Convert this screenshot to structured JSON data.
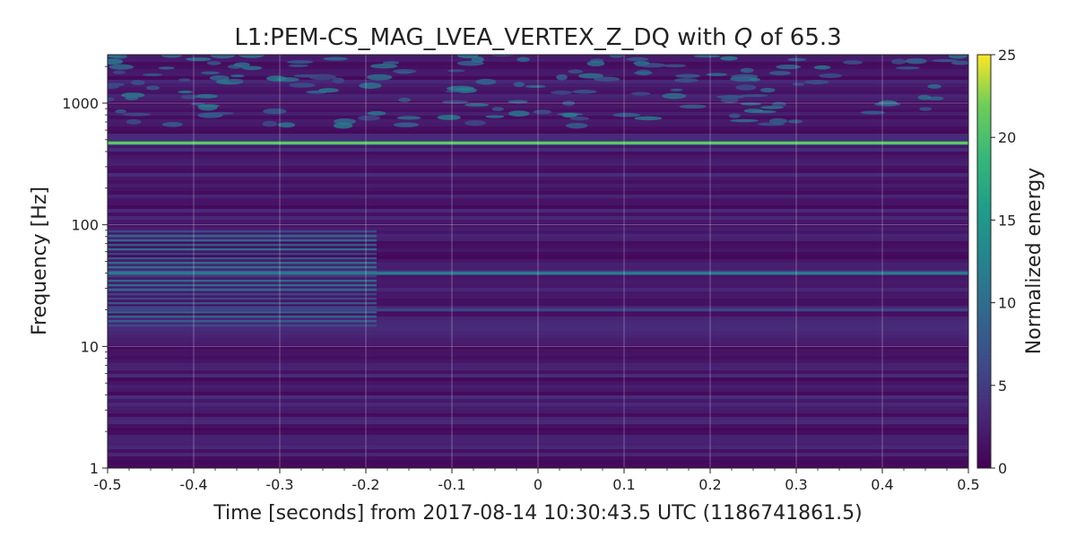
{
  "chart_data": {
    "type": "heatmap",
    "title_prefix": "L1:PEM-CS_MAG_LVEA_VERTEX_Z_DQ with ",
    "title_q": "Q",
    "title_suffix": " of 65.3",
    "xlabel": "Time [seconds] from 2017-08-14 10:30:43.5 UTC (1186741861.5)",
    "ylabel": "Frequency [Hz]",
    "xlim": [
      -0.5,
      0.5
    ],
    "ylim": [
      1,
      2500
    ],
    "yscale": "log",
    "x_ticks": [
      -0.5,
      -0.4,
      -0.3,
      -0.2,
      -0.1,
      0,
      0.1,
      0.2,
      0.3,
      0.4,
      0.5
    ],
    "x_tick_labels": [
      "-0.5",
      "-0.4",
      "-0.3",
      "-0.2",
      "-0.1",
      "0",
      "0.1",
      "0.2",
      "0.3",
      "0.4",
      "0.5"
    ],
    "y_ticks": [
      1,
      10,
      100,
      1000
    ],
    "y_tick_labels": [
      "1",
      "10",
      "100",
      "1000"
    ],
    "grid": true,
    "colormap": "viridis",
    "colorbar": {
      "label": "Normalized energy",
      "range": [
        0,
        25
      ],
      "ticks": [
        0,
        5,
        10,
        15,
        20,
        25
      ],
      "tick_labels": [
        "0",
        "5",
        "10",
        "15",
        "20",
        "25"
      ]
    },
    "features": [
      {
        "frequency": 470,
        "energy": 22
      },
      {
        "frequency": 40,
        "energy": 12
      },
      {
        "frequency": 20,
        "energy": 6
      }
    ]
  }
}
